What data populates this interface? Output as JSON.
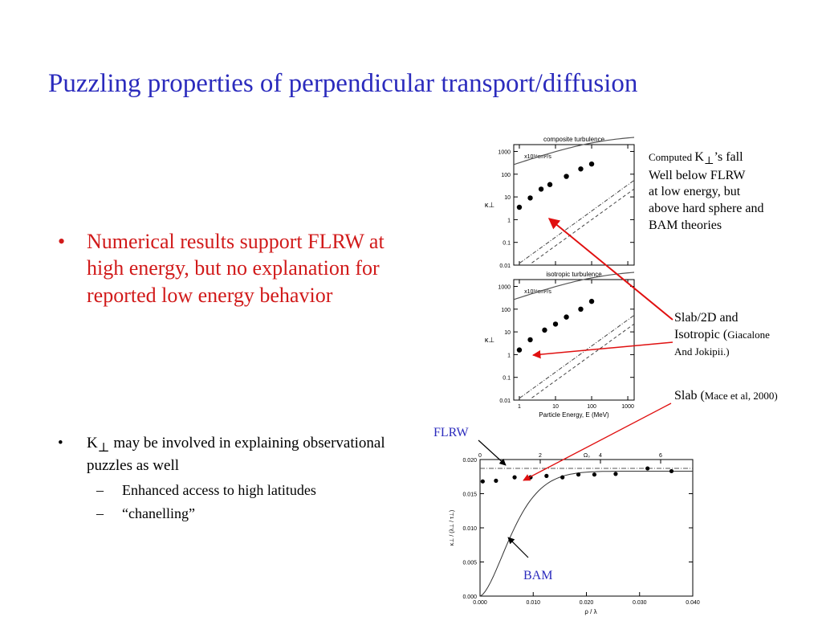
{
  "slide": {
    "title": "Puzzling properties of perpendicular transport/diffusion",
    "main_bullet": "Numerical results support FLRW at high energy, but no explanation for reported low energy behavior",
    "bullet2_prefix": "K",
    "bullet2_sub": "⊥",
    "bullet2_rest": " may be involved in explaining observational puzzles as well",
    "subitems": [
      "Enhanced access to high latitudes",
      "“chanelling”"
    ]
  },
  "annotations": {
    "computed_small": "Computed ",
    "computed_k": "K",
    "computed_perp": "⊥",
    "computed_rest": "’s fall",
    "lines": [
      "Well below FLRW",
      "at low energy, but",
      "above hard sphere and",
      "BAM theories"
    ],
    "slab2d_line1": "Slab/2D and",
    "slab2d_line2a": "Isotropic (",
    "slab2d_line2b": "Giacalone",
    "slab2d_line3": "And Jokipii.)",
    "slab_a": "Slab (",
    "slab_b": "Mace et al, 2000)",
    "flrw": "FLRW",
    "bam": "BAM",
    "colors": {
      "title": "#2b2bbd",
      "red": "#d11a1a",
      "arrow": "#e01010"
    }
  },
  "chart_data": [
    {
      "type": "scatter",
      "title": "composite turbulence",
      "xscale": "log",
      "yscale": "log",
      "xlim": [
        0.7,
        1500
      ],
      "ylim": [
        0.01,
        2000
      ],
      "yticks": [
        "1000",
        "100",
        "10",
        "1",
        "0.1",
        "0.01"
      ],
      "xticks": [],
      "ylabel": "κ⊥",
      "unit_label": "x10¹⁸cm²/s",
      "series": [
        {
          "values": [
            [
              1,
              3.5
            ],
            [
              2,
              9
            ],
            [
              4,
              22
            ],
            [
              7,
              35
            ],
            [
              20,
              80
            ],
            [
              50,
              170
            ],
            [
              100,
              280
            ]
          ]
        }
      ],
      "curves": [
        "FLRW",
        "hard-sphere",
        "BAM"
      ]
    },
    {
      "type": "scatter",
      "title": "isotropic turbulence",
      "xscale": "log",
      "yscale": "log",
      "xlim": [
        0.7,
        1500
      ],
      "ylim": [
        0.01,
        2000
      ],
      "yticks": [
        "1000",
        "100",
        "10",
        "1",
        "0.1",
        "0.01"
      ],
      "xticks": [
        "1",
        "10",
        "100",
        "1000"
      ],
      "xlabel": "Particle Energy, E (MeV)",
      "ylabel": "κ⊥",
      "unit_label": "x10¹⁸cm²/s",
      "series": [
        {
          "values": [
            [
              1,
              1.6
            ],
            [
              2,
              4.5
            ],
            [
              5,
              12
            ],
            [
              10,
              22
            ],
            [
              20,
              45
            ],
            [
              50,
              100
            ],
            [
              100,
              220
            ]
          ]
        }
      ],
      "curves": [
        "FLRW",
        "hard-sphere",
        "BAM"
      ]
    },
    {
      "type": "scatter",
      "xlim": [
        0,
        0.04
      ],
      "ylim": [
        0,
        0.02
      ],
      "xticks": [
        "0.000",
        "0.010",
        "0.020",
        "0.030",
        "0.040"
      ],
      "yticks": [
        "0.020",
        "0.015",
        "0.010",
        "0.005",
        "0.000"
      ],
      "top_ticks": [
        "0",
        "2",
        "4",
        "6"
      ],
      "top_label": "Ω₀",
      "xlabel": "ρ / λ",
      "ylabel": "κ⊥ / (λ⊥ / τ⊥)",
      "series": [
        {
          "values": [
            [
              0.0005,
              0.0168
            ],
            [
              0.003,
              0.0169
            ],
            [
              0.0065,
              0.0174
            ],
            [
              0.0095,
              0.0174
            ],
            [
              0.0125,
              0.0176
            ],
            [
              0.0155,
              0.0174
            ],
            [
              0.0185,
              0.0178
            ],
            [
              0.0215,
              0.0178
            ],
            [
              0.0255,
              0.0179
            ],
            [
              0.0315,
              0.0187
            ],
            [
              0.036,
              0.0183
            ]
          ]
        }
      ],
      "curves": [
        "FLRW",
        "BAM"
      ]
    }
  ]
}
